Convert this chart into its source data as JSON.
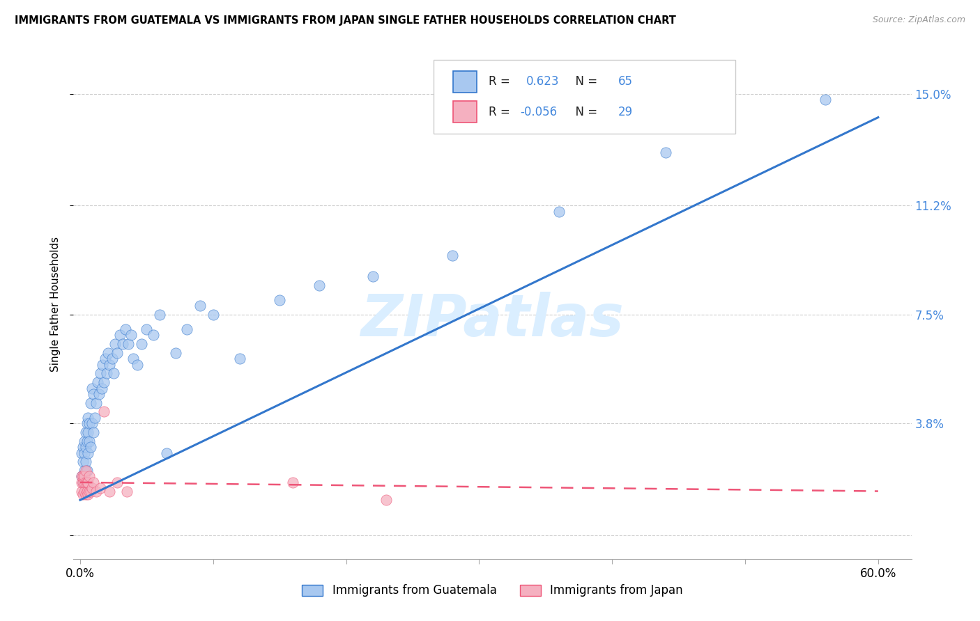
{
  "title": "IMMIGRANTS FROM GUATEMALA VS IMMIGRANTS FROM JAPAN SINGLE FATHER HOUSEHOLDS CORRELATION CHART",
  "source": "Source: ZipAtlas.com",
  "ylabel": "Single Father Households",
  "legend_labels": [
    "Immigrants from Guatemala",
    "Immigrants from Japan"
  ],
  "r_guatemala": 0.623,
  "n_guatemala": 65,
  "r_japan": -0.056,
  "n_japan": 29,
  "xlim": [
    -0.005,
    0.625
  ],
  "ylim": [
    -0.008,
    0.165
  ],
  "yticks": [
    0.0,
    0.038,
    0.075,
    0.112,
    0.15
  ],
  "ytick_labels": [
    "",
    "3.8%",
    "7.5%",
    "11.2%",
    "15.0%"
  ],
  "xticks": [
    0.0,
    0.1,
    0.2,
    0.3,
    0.4,
    0.5,
    0.6
  ],
  "xtick_labels": [
    "0.0%",
    "",
    "",
    "",
    "",
    "",
    "60.0%"
  ],
  "color_guatemala": "#a8c8f0",
  "color_japan": "#f5b0c0",
  "line_color_guatemala": "#3377cc",
  "line_color_japan": "#ee5577",
  "tick_label_color": "#4488dd",
  "watermark": "ZIPatlas",
  "watermark_color": "#daeeff",
  "guatemala_x": [
    0.001,
    0.001,
    0.002,
    0.002,
    0.002,
    0.003,
    0.003,
    0.003,
    0.004,
    0.004,
    0.004,
    0.005,
    0.005,
    0.005,
    0.006,
    0.006,
    0.006,
    0.007,
    0.007,
    0.008,
    0.008,
    0.009,
    0.009,
    0.01,
    0.01,
    0.011,
    0.012,
    0.013,
    0.014,
    0.015,
    0.016,
    0.017,
    0.018,
    0.019,
    0.02,
    0.021,
    0.022,
    0.024,
    0.025,
    0.026,
    0.028,
    0.03,
    0.032,
    0.034,
    0.036,
    0.038,
    0.04,
    0.043,
    0.046,
    0.05,
    0.055,
    0.06,
    0.065,
    0.072,
    0.08,
    0.09,
    0.1,
    0.12,
    0.15,
    0.18,
    0.22,
    0.28,
    0.36,
    0.44,
    0.56
  ],
  "guatemala_y": [
    0.02,
    0.028,
    0.018,
    0.03,
    0.025,
    0.022,
    0.032,
    0.028,
    0.025,
    0.035,
    0.03,
    0.022,
    0.038,
    0.032,
    0.028,
    0.04,
    0.035,
    0.032,
    0.038,
    0.03,
    0.045,
    0.038,
    0.05,
    0.035,
    0.048,
    0.04,
    0.045,
    0.052,
    0.048,
    0.055,
    0.05,
    0.058,
    0.052,
    0.06,
    0.055,
    0.062,
    0.058,
    0.06,
    0.055,
    0.065,
    0.062,
    0.068,
    0.065,
    0.07,
    0.065,
    0.068,
    0.06,
    0.058,
    0.065,
    0.07,
    0.068,
    0.075,
    0.028,
    0.062,
    0.07,
    0.078,
    0.075,
    0.06,
    0.08,
    0.085,
    0.088,
    0.095,
    0.11,
    0.13,
    0.148
  ],
  "japan_x": [
    0.001,
    0.001,
    0.001,
    0.002,
    0.002,
    0.002,
    0.003,
    0.003,
    0.003,
    0.004,
    0.004,
    0.004,
    0.005,
    0.005,
    0.006,
    0.006,
    0.007,
    0.007,
    0.008,
    0.009,
    0.01,
    0.012,
    0.015,
    0.018,
    0.022,
    0.028,
    0.035,
    0.16,
    0.23
  ],
  "japan_y": [
    0.015,
    0.018,
    0.02,
    0.014,
    0.018,
    0.02,
    0.015,
    0.018,
    0.02,
    0.014,
    0.018,
    0.022,
    0.015,
    0.018,
    0.014,
    0.018,
    0.015,
    0.02,
    0.015,
    0.016,
    0.018,
    0.015,
    0.016,
    0.042,
    0.015,
    0.018,
    0.015,
    0.018,
    0.012
  ],
  "guat_line_x0": 0.0,
  "guat_line_y0": 0.012,
  "guat_line_x1": 0.6,
  "guat_line_y1": 0.142,
  "japan_line_x0": 0.0,
  "japan_line_y0": 0.018,
  "japan_line_x1": 0.6,
  "japan_line_y1": 0.015
}
